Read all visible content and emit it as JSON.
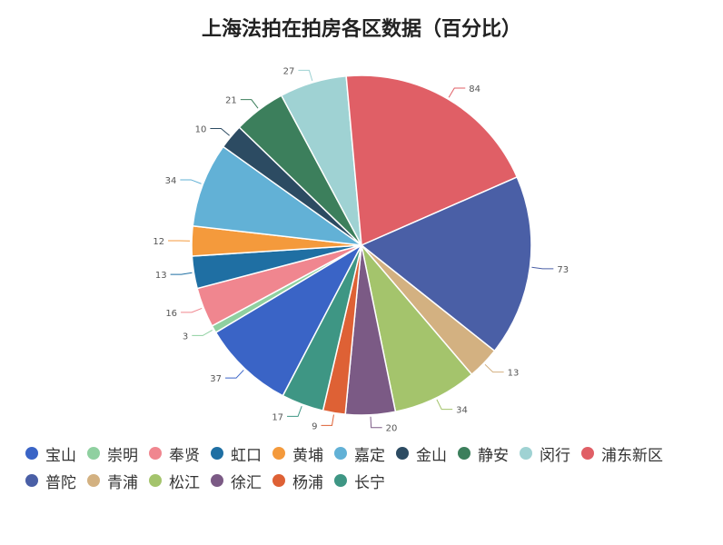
{
  "chart_data": {
    "type": "pie",
    "title": "上海法拍在拍房各区数据（百分比）",
    "categories": [
      "宝山",
      "崇明",
      "奉贤",
      "虹口",
      "黄埔",
      "嘉定",
      "金山",
      "静安",
      "闵行",
      "浦东新区",
      "普陀",
      "青浦",
      "松江",
      "徐汇",
      "杨浦",
      "长宁"
    ],
    "values": [
      37,
      3,
      16,
      13,
      12,
      34,
      10,
      21,
      27,
      84,
      73,
      13,
      34,
      20,
      9,
      17
    ],
    "colors": [
      "#3a64c6",
      "#8fd0a0",
      "#f0868f",
      "#1f6fa3",
      "#f49a3c",
      "#62b1d6",
      "#2c4b62",
      "#3c7f5c",
      "#9fd2d3",
      "#e05f66",
      "#4a5fa6",
      "#d3b181",
      "#a4c46c",
      "#7b5a85",
      "#de6135",
      "#3e9684"
    ],
    "legend_position": "bottom"
  }
}
